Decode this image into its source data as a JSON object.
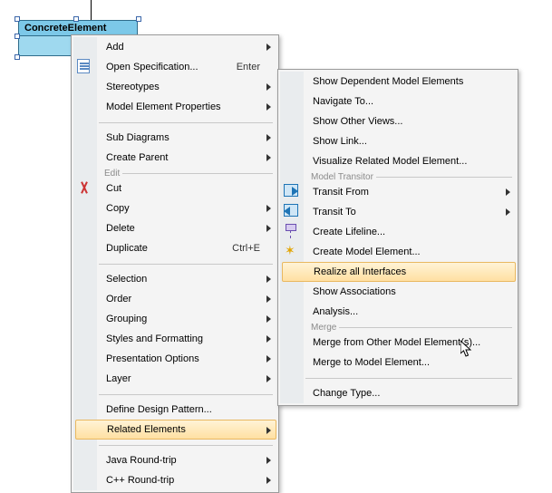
{
  "uml": {
    "title": "ConcreteElement"
  },
  "menu": {
    "groups": [
      {
        "label": null,
        "items": [
          {
            "label": "Add",
            "submenu": true
          },
          {
            "label": "Open Specification...",
            "shortcut": "Enter",
            "icon": "doc"
          },
          {
            "label": "Stereotypes",
            "submenu": true
          },
          {
            "label": "Model Element Properties",
            "submenu": true
          }
        ]
      },
      {
        "label": null,
        "items": [
          {
            "label": "Sub Diagrams",
            "submenu": true
          },
          {
            "label": "Create Parent",
            "submenu": true
          }
        ]
      },
      {
        "label": "Edit",
        "items": [
          {
            "label": "Cut",
            "icon": "cut"
          },
          {
            "label": "Copy",
            "submenu": true
          },
          {
            "label": "Delete",
            "submenu": true
          },
          {
            "label": "Duplicate",
            "shortcut": "Ctrl+E"
          }
        ]
      },
      {
        "label": null,
        "items": [
          {
            "label": "Selection",
            "submenu": true
          },
          {
            "label": "Order",
            "submenu": true
          },
          {
            "label": "Grouping",
            "submenu": true
          },
          {
            "label": "Styles and Formatting",
            "submenu": true
          },
          {
            "label": "Presentation Options",
            "submenu": true
          },
          {
            "label": "Layer",
            "submenu": true
          }
        ]
      },
      {
        "label": null,
        "items": [
          {
            "label": "Define Design Pattern..."
          },
          {
            "label": "Related Elements",
            "submenu": true,
            "highlight": true
          }
        ]
      },
      {
        "label": null,
        "items": [
          {
            "label": "Java Round-trip",
            "submenu": true
          },
          {
            "label": "C++ Round-trip",
            "submenu": true
          }
        ]
      }
    ]
  },
  "submenu": {
    "groups": [
      {
        "label": null,
        "items": [
          {
            "label": "Show Dependent Model Elements"
          },
          {
            "label": "Navigate To..."
          },
          {
            "label": "Show Other Views..."
          },
          {
            "label": "Show Link..."
          },
          {
            "label": "Visualize Related Model Element..."
          }
        ]
      },
      {
        "label": "Model Transitor",
        "items": [
          {
            "label": "Transit From",
            "submenu": true,
            "icon": "arrow-r"
          },
          {
            "label": "Transit To",
            "submenu": true,
            "icon": "arrow-l"
          },
          {
            "label": "Create Lifeline...",
            "icon": "life"
          },
          {
            "label": "Create Model Element...",
            "icon": "spark"
          },
          {
            "label": "Realize all Interfaces",
            "highlight": true
          },
          {
            "label": "Show Associations"
          },
          {
            "label": "Analysis..."
          }
        ]
      },
      {
        "label": "Merge",
        "items": [
          {
            "label": "Merge from Other Model Element(s)..."
          },
          {
            "label": "Merge to Model Element..."
          }
        ]
      },
      {
        "label": null,
        "items": [
          {
            "label": "Change Type..."
          }
        ]
      }
    ]
  },
  "colors": {
    "highlight_top": "#fff3d6",
    "highlight_bottom": "#ffe0a2",
    "highlight_border": "#e9b860",
    "menu_bg": "#f4f4f4",
    "menu_border": "#9b9b9b",
    "gutter": "#e9ecee",
    "uml_title_bg": "#7cc8e8",
    "uml_body_bg": "#9fd9ef",
    "uml_border": "#2f6c8a"
  }
}
